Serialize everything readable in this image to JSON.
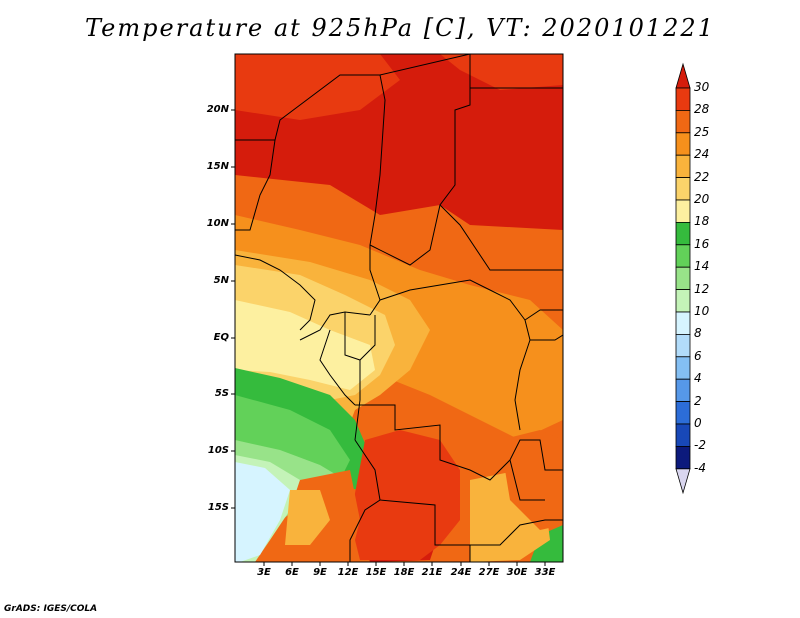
{
  "title": "Temperature at 925hPa [C], VT: 2020101221",
  "footer": "GrADS: IGES/COLA",
  "lat_labels": [
    "20N",
    "15N",
    "10N",
    "5N",
    "EQ",
    "5S",
    "10S",
    "15S"
  ],
  "lon_labels": [
    "3E",
    "6E",
    "9E",
    "12E",
    "15E",
    "18E",
    "21E",
    "24E",
    "27E",
    "30E",
    "33E"
  ],
  "colorbar": {
    "labels": [
      "30",
      "28",
      "25",
      "24",
      "22",
      "20",
      "18",
      "16",
      "14",
      "12",
      "10",
      "8",
      "6",
      "4",
      "2",
      "0",
      "-2",
      "-4"
    ],
    "colors": [
      "#d51c0c",
      "#e83a10",
      "#f06814",
      "#f6901c",
      "#f9b33c",
      "#fbd36a",
      "#fdf0a0",
      "#35bb3d",
      "#62d159",
      "#98e389",
      "#c4f3b8",
      "#d6f4ff",
      "#b2dcfa",
      "#84bff3",
      "#5698e8",
      "#2c6dd8",
      "#1848b8",
      "#0c1a7c"
    ],
    "top_color": "#d51c0c",
    "bottom_color": "#d9d6ef"
  },
  "map_colors": {
    "very_hot": "#d51c0c",
    "hot": "#e83a10",
    "warm": "#f06814",
    "mild": "#f6901c",
    "tepid": "#f9b33c",
    "cool_yellow": "#fbd36a",
    "pale_yellow": "#fdf0a0",
    "green": "#35bb3d",
    "light_green": "#62d159",
    "pale_green": "#98e389",
    "mint": "#c4f3b8",
    "sky": "#d6f4ff"
  }
}
